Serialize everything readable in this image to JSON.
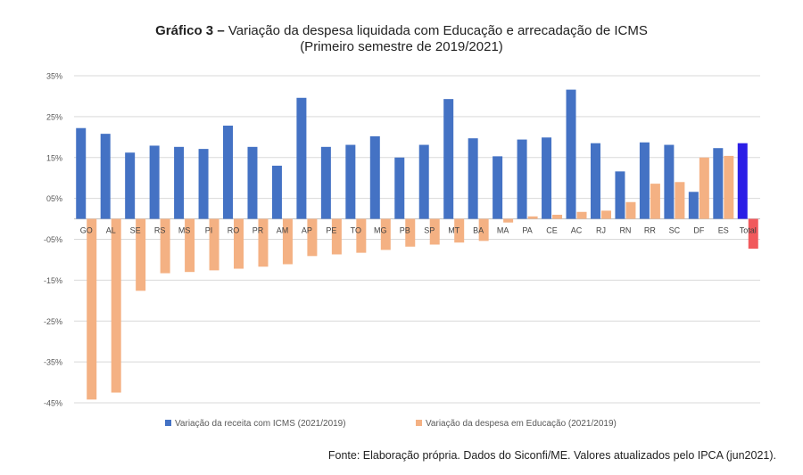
{
  "title": {
    "bold_prefix": "Gráfico 3 –",
    "main": "Variação da despesa liquidada com Educação e arrecadação de ICMS",
    "subtitle": "(Primeiro semestre de 2019/2021)"
  },
  "source": "Fonte: Elaboração própria. Dados do Siconfi/ME. Valores atualizados pelo IPCA (jun2021).",
  "chart_data": {
    "type": "bar",
    "categories": [
      "GO",
      "AL",
      "SE",
      "RS",
      "MS",
      "PI",
      "RO",
      "PR",
      "AM",
      "AP",
      "PE",
      "TO",
      "MG",
      "PB",
      "SP",
      "MT",
      "BA",
      "MA",
      "PA",
      "CE",
      "AC",
      "RJ",
      "RN",
      "RR",
      "SC",
      "DF",
      "ES",
      "Total"
    ],
    "series": [
      {
        "name": "Variação da receita com ICMS (2021/2019)",
        "color": "#4472c4",
        "total_color": "#2b1ee6",
        "values": [
          22.2,
          20.8,
          16.2,
          17.9,
          17.6,
          17.1,
          22.8,
          17.6,
          13.0,
          29.6,
          17.6,
          18.1,
          20.2,
          15.0,
          18.1,
          29.3,
          19.7,
          15.3,
          19.4,
          19.9,
          31.6,
          18.5,
          11.6,
          18.7,
          18.1,
          6.6,
          17.3,
          18.5
        ]
      },
      {
        "name": "Variação da despesa em Educação (2021/2019)",
        "color": "#f4b183",
        "total_color": "#f1595c",
        "values": [
          -44.2,
          -42.5,
          -17.6,
          -13.3,
          -13.0,
          -12.6,
          -12.2,
          -11.7,
          -11.1,
          -9.1,
          -8.7,
          -8.3,
          -7.6,
          -6.8,
          -6.3,
          -5.8,
          -5.4,
          -0.9,
          0.6,
          1.0,
          1.7,
          2.0,
          4.1,
          8.6,
          9.0,
          15.0,
          15.4,
          -7.3
        ]
      }
    ],
    "y_ticks": [
      35,
      25,
      15,
      5,
      -5,
      -15,
      -25,
      -35,
      -45
    ],
    "y_tick_labels": [
      "35%",
      "25%",
      "15%",
      "05%",
      "-05%",
      "-15%",
      "-25%",
      "-35%",
      "-45%"
    ],
    "ylim": [
      -45,
      35
    ],
    "grid": true,
    "legend_position": "bottom"
  }
}
